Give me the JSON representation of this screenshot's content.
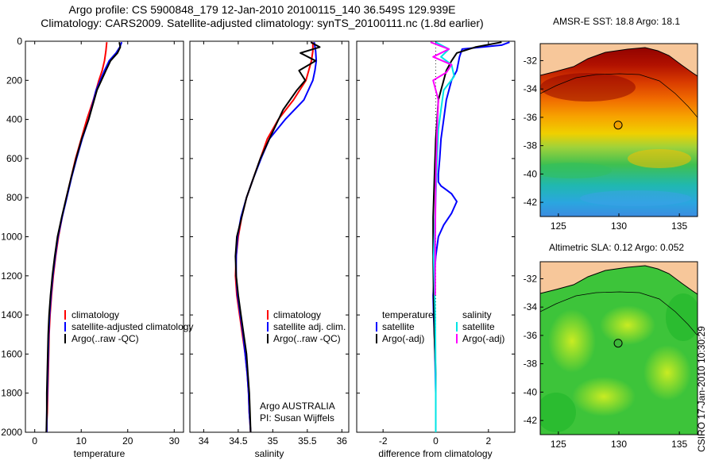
{
  "header": {
    "line1": "Argo profile: CS 5900848_179 12-Jan-2010 20100115_140 36.549S 129.939E",
    "line2": "Climatology: CARS2009. Satellite-adjusted climatology: synTS_20100111.nc (1.8d earlier)"
  },
  "stamp": "CSIRO 17-Jan-2010 10:30:29",
  "colors": {
    "clim": "#ff0000",
    "sat": "#0000ff",
    "argo": "#000000",
    "cyan": "#00e5e5",
    "magenta": "#ff00ff",
    "land": "#f7c79a"
  },
  "chart_data": [
    {
      "type": "line",
      "xlabel": "temperature",
      "ylabel": "",
      "xlim": [
        -2,
        32
      ],
      "ylim": [
        2000,
        0
      ],
      "xticks": [
        0,
        10,
        20,
        30
      ],
      "yticks": [
        0,
        200,
        400,
        600,
        800,
        1000,
        1200,
        1400,
        1600,
        1800,
        2000
      ],
      "legend": [
        "climatology",
        "satellite-adjusted climatology",
        "Argo(..raw -QC)"
      ],
      "series": [
        {
          "name": "climatology",
          "color": "#ff0000",
          "x": [
            15.5,
            15.3,
            15.0,
            14.5,
            13.8,
            12.6,
            11.2,
            10.0,
            8.8,
            7.8,
            6.8,
            5.9,
            5.1,
            4.5,
            4.0,
            3.6,
            3.3,
            3.1,
            3.0,
            2.9,
            2.8,
            2.7,
            2.6,
            2.6
          ],
          "y": [
            5,
            50,
            100,
            150,
            200,
            300,
            400,
            500,
            600,
            700,
            800,
            900,
            1000,
            1100,
            1200,
            1300,
            1400,
            1500,
            1600,
            1700,
            1800,
            1900,
            1950,
            2000
          ]
        },
        {
          "name": "satellite-adjusted climatology",
          "color": "#0000ff",
          "x": [
            18.7,
            18.3,
            17.5,
            16.0,
            15.0,
            13.2,
            11.6,
            10.2,
            9.0,
            7.9,
            6.9,
            5.9,
            5.0,
            4.4,
            3.9,
            3.5,
            3.2,
            3.0,
            2.9,
            2.8,
            2.7,
            2.6,
            2.6,
            2.6
          ],
          "y": [
            5,
            30,
            60,
            100,
            150,
            250,
            400,
            500,
            600,
            700,
            800,
            900,
            1000,
            1100,
            1200,
            1300,
            1400,
            1500,
            1600,
            1700,
            1800,
            1900,
            1950,
            2000
          ]
        },
        {
          "name": "Argo(..raw -QC)",
          "color": "#000000",
          "x": [
            18.2,
            18.4,
            17.8,
            16.3,
            15.3,
            13.4,
            11.6,
            10.1,
            8.9,
            7.8,
            6.8,
            5.8,
            4.9,
            4.3,
            3.8,
            3.4,
            3.1,
            2.9,
            2.8,
            2.7,
            2.6,
            2.6,
            2.5
          ],
          "y": [
            5,
            30,
            60,
            100,
            150,
            250,
            400,
            500,
            600,
            700,
            800,
            900,
            1000,
            1100,
            1200,
            1300,
            1400,
            1500,
            1600,
            1700,
            1800,
            1900,
            2000
          ]
        }
      ]
    },
    {
      "type": "line",
      "xlabel": "salinity",
      "ylabel": "",
      "xlim": [
        33.8,
        36.1
      ],
      "ylim": [
        2000,
        0
      ],
      "xticks": [
        34,
        34.5,
        35,
        35.5,
        36
      ],
      "xtick_labels": [
        "34",
        "34.5",
        "35",
        "35.5",
        "36"
      ],
      "legend": [
        "climatology",
        "satellite adj. clim.",
        "Argo(..raw -QC)"
      ],
      "annotation": [
        "Argo AUSTRALIA",
        "PI: Susan Wijffels"
      ],
      "series": [
        {
          "name": "climatology",
          "color": "#ff0000",
          "x": [
            35.58,
            35.58,
            35.56,
            35.52,
            35.48,
            35.3,
            35.08,
            34.92,
            34.82,
            34.72,
            34.62,
            34.55,
            34.5,
            34.47,
            34.46,
            34.48,
            34.52,
            34.56,
            34.6,
            34.63,
            34.65,
            34.66,
            34.67,
            34.68
          ],
          "y": [
            5,
            50,
            100,
            150,
            200,
            300,
            400,
            500,
            600,
            700,
            800,
            900,
            1000,
            1100,
            1200,
            1300,
            1400,
            1500,
            1600,
            1700,
            1800,
            1900,
            1950,
            2000
          ]
        },
        {
          "name": "satellite adj. clim.",
          "color": "#0000ff",
          "x": [
            35.6,
            35.62,
            35.63,
            35.61,
            35.58,
            35.45,
            35.18,
            34.95,
            34.83,
            34.72,
            34.62,
            34.54,
            34.49,
            34.47,
            34.47,
            34.49,
            34.53,
            34.57,
            34.6,
            34.63,
            34.65,
            34.66,
            34.67,
            34.68
          ],
          "y": [
            5,
            50,
            100,
            150,
            200,
            300,
            400,
            500,
            600,
            700,
            800,
            900,
            1000,
            1100,
            1200,
            1300,
            1400,
            1500,
            1600,
            1700,
            1800,
            1900,
            1950,
            2000
          ]
        },
        {
          "name": "Argo(..raw -QC)",
          "color": "#000000",
          "x": [
            35.55,
            35.68,
            35.4,
            35.62,
            35.38,
            35.47,
            35.35,
            35.15,
            34.95,
            34.82,
            34.72,
            34.62,
            34.55,
            34.48,
            34.46,
            34.47,
            34.5,
            34.54,
            34.58,
            34.62,
            34.64,
            34.66,
            34.67,
            34.68
          ],
          "y": [
            5,
            30,
            60,
            100,
            150,
            200,
            250,
            350,
            500,
            600,
            700,
            800,
            900,
            1000,
            1100,
            1200,
            1300,
            1400,
            1500,
            1600,
            1700,
            1800,
            1900,
            2000
          ]
        }
      ]
    },
    {
      "type": "line",
      "xlabel": "difference from climatology",
      "ylabel": "",
      "xlim": [
        -3,
        3
      ],
      "ylim": [
        2000,
        0
      ],
      "xticks": [
        -2,
        0,
        2
      ],
      "legend_left": [
        "temperature",
        "satellite",
        "Argo(-adj)"
      ],
      "legend_right": [
        "salinity",
        "satellite",
        "Argo(-adj)"
      ],
      "series": [
        {
          "name": "satellite",
          "color": "#0000ff",
          "x": [
            2.8,
            2.5,
            1.0,
            0.9,
            0.8,
            0.6,
            0.5,
            0.4,
            0.3,
            0.2,
            0.15,
            0.1,
            0.1,
            0.2,
            0.4,
            0.6,
            0.8,
            0.6,
            0.3,
            0.1,
            0.0,
            -0.05,
            -0.1,
            -0.08,
            -0.05,
            -0.03,
            0.0,
            0.0
          ],
          "y": [
            5,
            20,
            40,
            80,
            150,
            200,
            250,
            300,
            400,
            500,
            600,
            680,
            720,
            740,
            760,
            780,
            820,
            880,
            940,
            1000,
            1100,
            1200,
            1300,
            1400,
            1500,
            1600,
            1800,
            2000
          ]
        },
        {
          "name": "Argo(-adj)",
          "color": "#000000",
          "x": [
            2.5,
            1.5,
            0.8,
            0.6,
            0.4,
            0.3,
            0.2,
            0.1,
            0.05,
            0.0,
            -0.05,
            -0.1,
            -0.1,
            -0.08,
            -0.05,
            0.0,
            0.0
          ],
          "y": [
            5,
            30,
            60,
            100,
            150,
            200,
            250,
            300,
            400,
            500,
            700,
            900,
            1100,
            1300,
            1500,
            1700,
            2000
          ]
        },
        {
          "name": "satellite",
          "color": "#00e5e5",
          "x": [
            0.0,
            0.5,
            0.2,
            0.6,
            0.7,
            0.3,
            0.2,
            0.1,
            0.05,
            0.0,
            -0.05,
            -0.08,
            -0.06,
            -0.04,
            -0.02,
            -0.01,
            0.0,
            0.0
          ],
          "y": [
            5,
            40,
            80,
            120,
            180,
            250,
            350,
            450,
            600,
            800,
            1000,
            1100,
            1200,
            1300,
            1400,
            1600,
            1800,
            2000
          ]
        },
        {
          "name": "Argo(-adj)",
          "color": "#ff00ff",
          "x": [
            -0.2,
            0.5,
            -0.1,
            0.6,
            0.4,
            -0.1,
            0.1,
            0.05,
            0.0,
            -0.02,
            -0.02
          ],
          "y": [
            5,
            40,
            80,
            120,
            160,
            200,
            300,
            450,
            700,
            1000,
            1300
          ]
        }
      ]
    },
    {
      "type": "heatmap",
      "title": "AMSR-E SST: 18.8 Argo: 18.1",
      "xlim": [
        123.5,
        136.5
      ],
      "ylim": [
        -43,
        -30.8
      ],
      "xticks": [
        125,
        130,
        135
      ],
      "yticks": [
        -32,
        -34,
        -36,
        -38,
        -40,
        -42
      ],
      "marker": {
        "lon": 129.939,
        "lat": -36.549
      }
    },
    {
      "type": "heatmap",
      "title": "Altimetric SLA: 0.12 Argo: 0.052",
      "xlim": [
        123.5,
        136.5
      ],
      "ylim": [
        -43,
        -30.8
      ],
      "xticks": [
        125,
        130,
        135
      ],
      "yticks": [
        -32,
        -34,
        -36,
        -38,
        -40,
        -42
      ],
      "marker": {
        "lon": 129.939,
        "lat": -36.549
      }
    }
  ]
}
